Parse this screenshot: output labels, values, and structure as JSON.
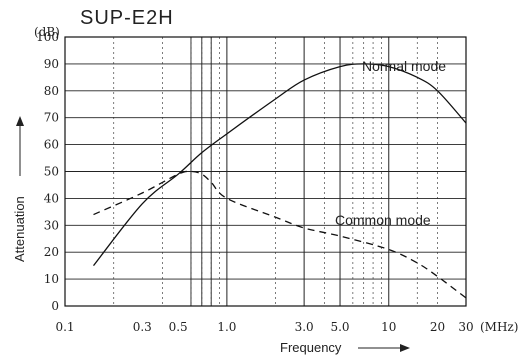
{
  "chart_data": {
    "type": "line",
    "title": "SUP-E2H",
    "xlabel": "Frequency",
    "ylabel": "Attenuation",
    "x_unit": "(MHz)",
    "y_unit": "(dB)",
    "x_scale": "log",
    "xlim": [
      0.1,
      30
    ],
    "ylim": [
      0,
      100
    ],
    "grid": true,
    "x_ticks": [
      0.1,
      0.3,
      0.5,
      1.0,
      3.0,
      5.0,
      10,
      20,
      30
    ],
    "x_tick_labels": [
      "0.1",
      "0.3",
      "0.5",
      "1.0",
      "3.0",
      "5.0",
      "10",
      "20",
      "30"
    ],
    "y_ticks": [
      0,
      10,
      20,
      30,
      40,
      50,
      60,
      70,
      80,
      90,
      100
    ],
    "y_tick_labels": [
      "0",
      "10",
      "20",
      "30",
      "40",
      "50",
      "60",
      "70",
      "80",
      "90",
      "100"
    ],
    "series": [
      {
        "name": "Normal mode",
        "style": "solid",
        "x": [
          0.15,
          0.3,
          0.5,
          0.7,
          1.0,
          2.0,
          3.0,
          5.0,
          7.0,
          10,
          15,
          20,
          30
        ],
        "y": [
          15,
          38,
          49,
          57,
          64,
          77,
          84,
          89,
          90,
          89,
          85,
          80,
          68
        ]
      },
      {
        "name": "Common mode",
        "style": "dashed",
        "x": [
          0.15,
          0.3,
          0.5,
          0.6,
          0.7,
          0.8,
          1.0,
          2.0,
          3.0,
          5.0,
          10,
          15,
          20,
          30
        ],
        "y": [
          34,
          42,
          49,
          50,
          49,
          46,
          40,
          33,
          29,
          26,
          21,
          16,
          11,
          3
        ]
      }
    ]
  }
}
